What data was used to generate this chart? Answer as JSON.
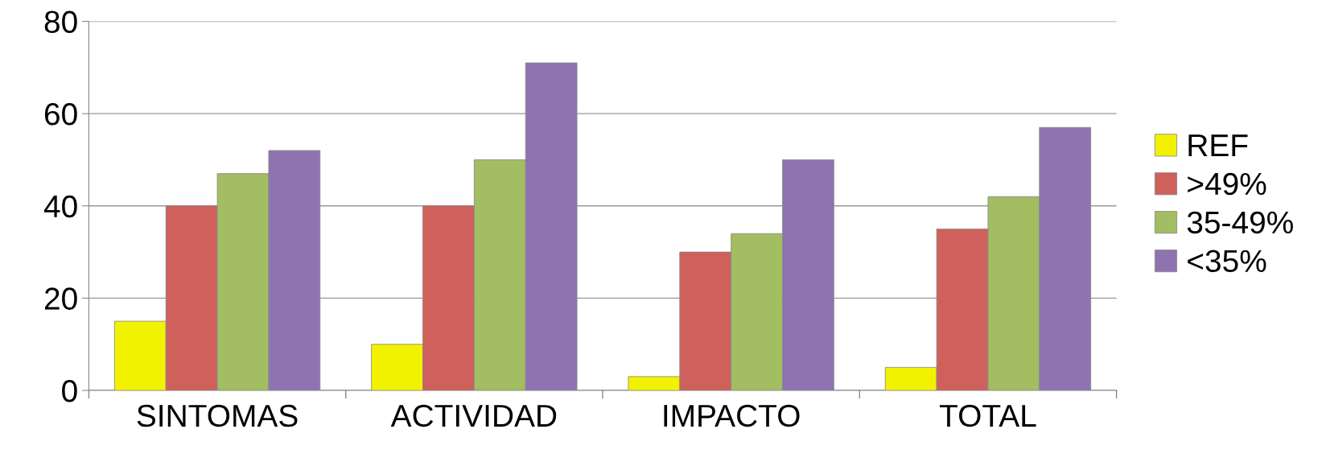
{
  "chart_data": {
    "type": "bar",
    "categories": [
      "SINTOMAS",
      "ACTIVIDAD",
      "IMPACTO",
      "TOTAL"
    ],
    "series": [
      {
        "name": "REF",
        "color": "#f2f200",
        "values": [
          15,
          10,
          3,
          5
        ]
      },
      {
        "name": ">49%",
        "color": "#d0605b",
        "values": [
          40,
          40,
          30,
          35
        ]
      },
      {
        "name": "35-49%",
        "color": "#a2bd62",
        "values": [
          47,
          50,
          34,
          42
        ]
      },
      {
        "name": "<35%",
        "color": "#8f73b0",
        "values": [
          52,
          71,
          50,
          57
        ]
      }
    ],
    "ylim": [
      0,
      80
    ],
    "yticks": [
      0,
      20,
      40,
      60,
      80
    ],
    "grid": "y",
    "legend": "right"
  }
}
